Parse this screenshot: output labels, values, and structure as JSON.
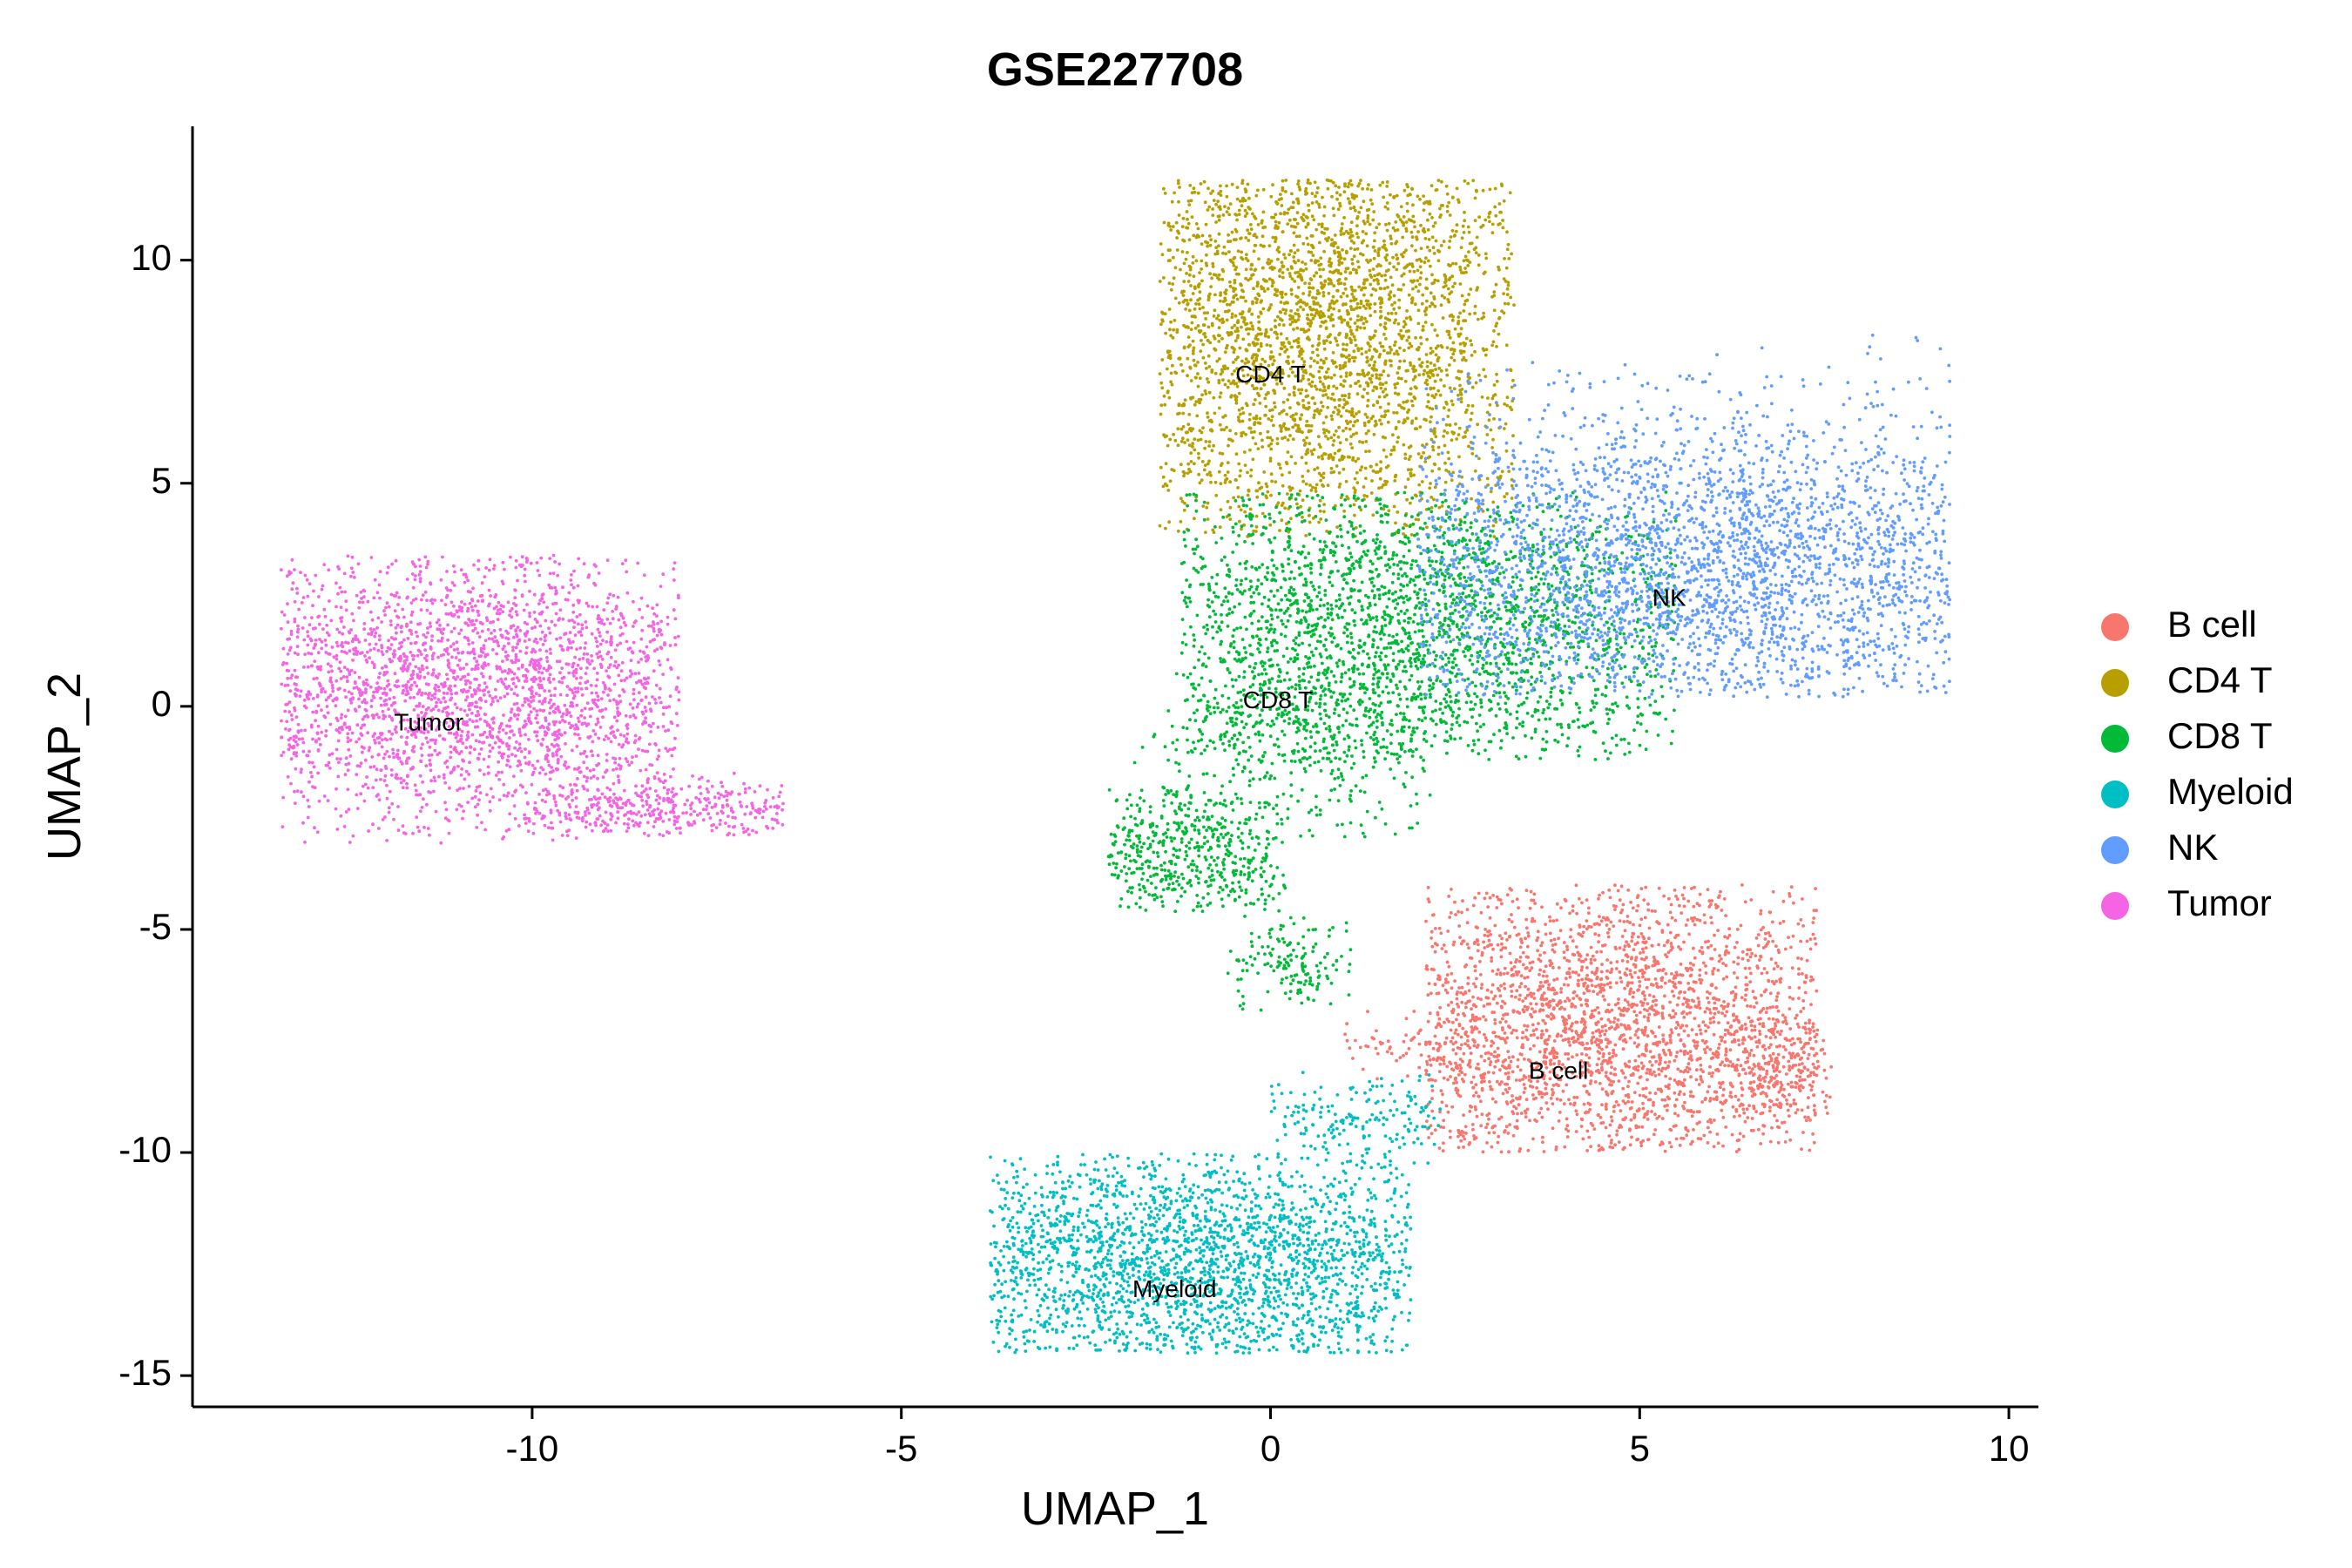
{
  "chart_data": {
    "type": "scatter",
    "title": "GSE227708",
    "xlabel": "UMAP_1",
    "ylabel": "UMAP_2",
    "xlim": [
      -14.6,
      10.4
    ],
    "ylim": [
      -15.7,
      13
    ],
    "xticks": [
      -10,
      -5,
      0,
      5,
      10
    ],
    "yticks": [
      -15,
      -10,
      -5,
      0,
      5,
      10
    ],
    "xtick_labels": [
      "-10",
      "-5",
      "0",
      "5",
      "10"
    ],
    "ytick_labels": [
      "-15",
      "-10",
      "-5",
      "0",
      "5",
      "10"
    ],
    "grid": false,
    "legend_position": "right",
    "series": [
      {
        "name": "B cell",
        "color": "#F8766D",
        "label_at": [
          3.9,
          -8.2
        ],
        "regions": [
          {
            "x": [
              2.1,
              7.4
            ],
            "y": [
              -10.0,
              -4.0
            ],
            "cx": 4.5,
            "cy": -7.2,
            "rx": 2.2,
            "ry": 1.8,
            "n": 2600
          },
          {
            "x": [
              6.2,
              7.6
            ],
            "y": [
              -9.2,
              -7.0
            ],
            "cx": 7.0,
            "cy": -8.0,
            "rx": 0.45,
            "ry": 0.7,
            "n": 180
          },
          {
            "x": [
              1.0,
              3.2
            ],
            "y": [
              -8.6,
              -6.8
            ],
            "cx": 1.9,
            "cy": -7.6,
            "rx": 0.9,
            "ry": 0.35,
            "n": 80
          }
        ]
      },
      {
        "name": "CD4 T",
        "color": "#B79F00",
        "label_at": [
          0.0,
          7.4
        ],
        "regions": [
          {
            "x": [
              -1.5,
              3.3
            ],
            "y": [
              3.8,
              11.8
            ],
            "cx": 0.6,
            "cy": 8.5,
            "rx": 1.6,
            "ry": 2.7,
            "n": 3000
          }
        ]
      },
      {
        "name": "CD8 T",
        "color": "#00BA38",
        "label_at": [
          0.1,
          0.1
        ],
        "regions": [
          {
            "x": [
              -1.2,
              5.5
            ],
            "y": [
              -1.2,
              4.8
            ],
            "cx": 1.8,
            "cy": 1.6,
            "rx": 2.4,
            "ry": 2.0,
            "n": 2600
          },
          {
            "x": [
              -2.2,
              0.2
            ],
            "y": [
              -4.6,
              -1.8
            ],
            "cx": -1.1,
            "cy": -3.3,
            "rx": 1.0,
            "ry": 0.8,
            "n": 500
          },
          {
            "x": [
              -0.6,
              1.2
            ],
            "y": [
              -6.9,
              -4.7
            ],
            "cx": 0.2,
            "cy": -5.8,
            "rx": 0.5,
            "ry": 0.5,
            "n": 150
          },
          {
            "x": [
              -1.9,
              2.2
            ],
            "y": [
              -3.0,
              1.0
            ],
            "cx": 0.4,
            "cy": -1.3,
            "rx": 1.2,
            "ry": 1.2,
            "n": 350
          }
        ]
      },
      {
        "name": "Myeloid",
        "color": "#00BFC4",
        "label_at": [
          -1.3,
          -13.1
        ],
        "regions": [
          {
            "x": [
              -3.8,
              1.9
            ],
            "y": [
              -14.5,
              -10.0
            ],
            "cx": -1.0,
            "cy": -12.5,
            "rx": 2.3,
            "ry": 1.4,
            "n": 2400
          },
          {
            "x": [
              0.0,
              2.3
            ],
            "y": [
              -10.4,
              -8.2
            ],
            "cx": 1.2,
            "cy": -9.3,
            "rx": 1.0,
            "ry": 0.5,
            "n": 180
          }
        ]
      },
      {
        "name": "NK",
        "color": "#619CFF",
        "label_at": [
          5.4,
          2.4
        ],
        "regions": [
          {
            "x": [
              2.0,
              9.2
            ],
            "y": [
              0.2,
              8.4
            ],
            "cx": 5.8,
            "cy": 3.0,
            "rx": 3.0,
            "ry": 1.9,
            "n": 3200
          }
        ]
      },
      {
        "name": "Tumor",
        "color": "#F564E3",
        "label_at": [
          -11.4,
          -0.4
        ],
        "regions": [
          {
            "x": [
              -13.4,
              -8.0
            ],
            "y": [
              -3.1,
              3.4
            ],
            "cx": -10.8,
            "cy": 0.4,
            "rx": 2.2,
            "ry": 1.7,
            "n": 2600
          },
          {
            "x": [
              -10.0,
              -6.6
            ],
            "y": [
              -2.9,
              -1.5
            ],
            "cx": -8.2,
            "cy": -2.3,
            "rx": 1.5,
            "ry": 0.4,
            "n": 350
          }
        ]
      }
    ]
  }
}
